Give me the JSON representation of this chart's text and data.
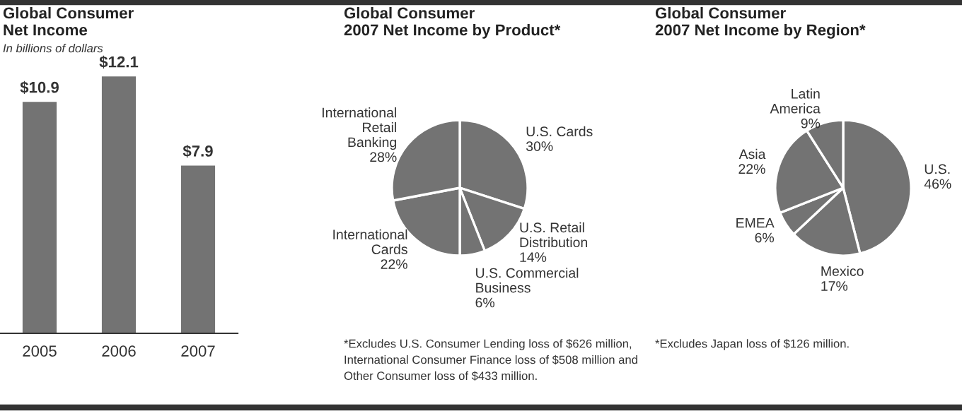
{
  "chart_data": [
    {
      "type": "bar",
      "title": "Global Consumer\nNet Income",
      "subtitle": "In billions of dollars",
      "categories": [
        "2005",
        "2006",
        "2007"
      ],
      "values": [
        10.9,
        12.1,
        7.9
      ],
      "value_labels": [
        "$10.9",
        "$12.1",
        "$7.9"
      ],
      "color": "#737373",
      "grid": false,
      "legend": false
    },
    {
      "type": "pie",
      "title": "Global Consumer\n2007 Net Income by Product*",
      "categories": [
        "U.S. Cards",
        "U.S. Retail\nDistribution",
        "U.S. Commercial\nBusiness",
        "International\nCards",
        "International\nRetail\nBanking"
      ],
      "values": [
        30,
        14,
        6,
        22,
        28
      ],
      "value_labels": [
        "30%",
        "14%",
        "6%",
        "22%",
        "28%"
      ],
      "colors": [
        "#737373",
        "#737373",
        "#737373",
        "#737373",
        "#737373"
      ],
      "legend": false,
      "annotations": [
        "*Excludes U.S. Consumer Lending loss of $626 million,\nInternational Consumer Finance loss of $508 million and\nOther Consumer loss of $433 million."
      ]
    },
    {
      "type": "pie",
      "title": "Global Consumer\n2007 Net Income by Region*",
      "categories": [
        "U.S.",
        "Mexico",
        "EMEA",
        "Asia",
        "Latin\nAmerica"
      ],
      "values": [
        46,
        17,
        6,
        22,
        9
      ],
      "value_labels": [
        "46%",
        "17%",
        "6%",
        "22%",
        "9%"
      ],
      "colors": [
        "#737373",
        "#737373",
        "#737373",
        "#737373",
        "#737373"
      ],
      "legend": false,
      "annotations": [
        "*Excludes Japan loss of $126 million."
      ]
    }
  ]
}
